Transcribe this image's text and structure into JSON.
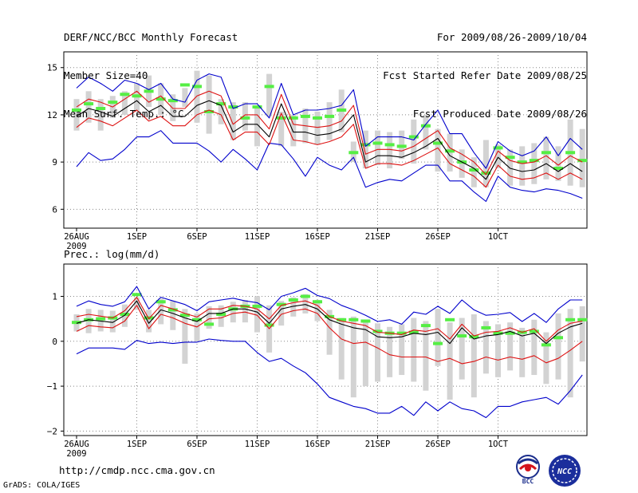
{
  "header": {
    "title": "DERF/NCC/BCC Monthly Forecast",
    "member_size": "Member Size=40",
    "variable": "Mean Surf. Temp.: °C",
    "forecast_period": "For 2009/08/26-2009/10/04",
    "started_refer": "Fcst Started Refer Date 2009/08/25",
    "produced": "Fcst Produced Date 2009/08/26"
  },
  "footer": {
    "url": "http://cmdp.ncc.cma.gov.cn",
    "credit": "GrADS: COLA/IGES",
    "logo_bcc_label": "BCC",
    "logo_ncc_label": "NCC"
  },
  "colors": {
    "mean": "#000000",
    "spread": "#dd1111",
    "envelope": "#0000cc",
    "observed": "#55ee44",
    "box": "#d3d3d3",
    "grid": "#888888"
  },
  "chart_data": [
    {
      "type": "line",
      "title": "Mean Surf. Temp.: °C",
      "x_tick_labels": [
        "26AUG",
        "1SEP",
        "6SEP",
        "11SEP",
        "16SEP",
        "21SEP",
        "26SEP",
        "1OCT"
      ],
      "x_tick_label_year": "2009",
      "y_ticks": [
        6,
        9,
        12,
        15
      ],
      "y_tick_labels": [
        "6",
        "9",
        "12",
        "15"
      ],
      "ylim": [
        4.8,
        16.0
      ],
      "grid": true,
      "series": [
        {
          "name": "max",
          "color": "envelope",
          "values": [
            13.7,
            14.4,
            14.0,
            13.5,
            14.2,
            14.0,
            13.6,
            14.0,
            13.0,
            12.8,
            14.2,
            14.6,
            14.4,
            12.4,
            12.7,
            12.7,
            11.8,
            14.0,
            12.0,
            12.3,
            12.3,
            12.4,
            12.6,
            13.6,
            10.0,
            10.6,
            10.6,
            10.6,
            10.4,
            11.4,
            12.3,
            10.8,
            10.8,
            9.6,
            8.6,
            10.3,
            9.7,
            9.4,
            9.7,
            10.6,
            9.4,
            10.5,
            9.8
          ]
        },
        {
          "name": "upper",
          "color": "spread",
          "values": [
            12.5,
            13.0,
            12.8,
            12.5,
            13.0,
            13.5,
            12.8,
            13.2,
            12.4,
            12.4,
            13.2,
            13.5,
            13.2,
            11.4,
            12.0,
            12.0,
            11.1,
            13.3,
            11.4,
            11.3,
            11.2,
            11.3,
            11.6,
            12.6,
            9.5,
            9.8,
            9.8,
            9.7,
            10.0,
            10.5,
            11.0,
            9.9,
            9.5,
            9.0,
            8.2,
            9.7,
            9.1,
            8.9,
            9.0,
            9.4,
            8.8,
            9.4,
            9.0
          ]
        },
        {
          "name": "mean",
          "color": "mean",
          "values": [
            11.9,
            12.4,
            12.2,
            11.9,
            12.4,
            12.9,
            12.2,
            12.6,
            11.9,
            11.9,
            12.6,
            12.9,
            12.6,
            10.9,
            11.4,
            11.4,
            10.6,
            12.7,
            10.9,
            10.9,
            10.7,
            10.8,
            11.1,
            12.0,
            9.0,
            9.4,
            9.4,
            9.3,
            9.6,
            10.0,
            10.5,
            9.4,
            9.0,
            8.6,
            7.9,
            9.3,
            8.6,
            8.4,
            8.5,
            8.9,
            8.4,
            8.9,
            8.4
          ]
        },
        {
          "name": "lower",
          "color": "spread",
          "values": [
            11.2,
            11.8,
            11.6,
            11.3,
            11.8,
            12.3,
            11.6,
            11.9,
            11.3,
            11.3,
            12.0,
            12.3,
            12.0,
            10.4,
            10.9,
            10.9,
            10.1,
            12.1,
            10.4,
            10.3,
            10.1,
            10.3,
            10.6,
            11.4,
            8.6,
            8.9,
            8.9,
            8.8,
            9.1,
            9.5,
            9.9,
            8.9,
            8.5,
            8.1,
            7.4,
            8.8,
            8.1,
            7.9,
            8.0,
            8.3,
            7.9,
            8.3,
            7.9
          ]
        },
        {
          "name": "min",
          "color": "envelope",
          "values": [
            8.7,
            9.6,
            9.1,
            9.2,
            9.8,
            10.6,
            10.6,
            11.0,
            10.2,
            10.2,
            10.2,
            9.7,
            9.0,
            9.8,
            9.2,
            8.5,
            10.2,
            10.1,
            9.2,
            8.1,
            9.3,
            8.8,
            8.5,
            9.3,
            7.4,
            7.7,
            7.9,
            7.8,
            8.3,
            8.8,
            8.8,
            7.8,
            7.8,
            7.1,
            6.5,
            8.1,
            7.4,
            7.2,
            7.1,
            7.3,
            7.2,
            7.0,
            6.7
          ]
        },
        {
          "name": "observed",
          "color": "observed",
          "values": [
            12.3,
            12.7,
            12.4,
            12.8,
            13.3,
            13.2,
            13.5,
            13.0,
            12.9,
            13.9,
            13.8,
            12.2,
            12.7,
            12.5,
            11.8,
            12.5,
            13.8,
            11.8,
            11.8,
            11.9,
            11.8,
            11.9,
            12.3,
            9.6,
            10.1,
            10.2,
            10.1,
            10.0,
            10.6,
            11.3,
            10.2,
            9.7,
            9.0,
            8.5,
            8.3,
            9.9,
            9.3,
            9.0,
            9.1,
            9.6,
            8.6,
            9.6,
            9.1
          ]
        },
        {
          "name": "box_high",
          "color": "box",
          "values": [
            13.0,
            13.5,
            13.0,
            13.2,
            13.5,
            14.0,
            14.5,
            14.0,
            13.3,
            13.7,
            14.8,
            14.5,
            13.0,
            12.8,
            12.8,
            12.5,
            14.6,
            12.2,
            12.0,
            12.4,
            12.2,
            12.8,
            13.6,
            10.3,
            11.0,
            11.0,
            10.9,
            11.0,
            11.7,
            12.0,
            11.1,
            10.8,
            9.8,
            9.3,
            10.4,
            10.1,
            9.8,
            10.0,
            10.2,
            10.6,
            10.0,
            11.7,
            11.1
          ]
        },
        {
          "name": "box_low",
          "color": "box",
          "values": [
            11.0,
            11.5,
            11.0,
            11.8,
            12.0,
            12.2,
            12.5,
            12.0,
            11.6,
            12.5,
            11.5,
            10.8,
            11.4,
            10.4,
            11.0,
            10.0,
            11.9,
            10.0,
            10.0,
            10.2,
            10.1,
            10.4,
            10.9,
            9.0,
            8.6,
            8.8,
            8.6,
            9.2,
            8.9,
            9.8,
            8.4,
            8.4,
            8.0,
            7.4,
            7.4,
            8.6,
            7.5,
            7.5,
            7.6,
            7.9,
            7.8,
            7.5,
            7.4
          ]
        }
      ]
    },
    {
      "type": "line",
      "title": "Prec.: log(mm/d)",
      "x_tick_labels": [
        "26AUG",
        "1SEP",
        "6SEP",
        "11SEP",
        "16SEP",
        "21SEP",
        "26SEP",
        "1OCT"
      ],
      "x_tick_label_year": "2009",
      "y_ticks": [
        -2,
        -1,
        0,
        1
      ],
      "y_tick_labels": [
        "−2",
        "−1",
        "0",
        "1"
      ],
      "ylim": [
        -2.1,
        1.72
      ],
      "grid": true,
      "series": [
        {
          "name": "max",
          "color": "envelope",
          "values": [
            0.78,
            0.9,
            0.82,
            0.78,
            0.88,
            1.22,
            0.72,
            0.98,
            0.9,
            0.82,
            0.68,
            0.88,
            0.92,
            0.96,
            0.9,
            0.86,
            0.7,
            1.0,
            1.08,
            1.18,
            1.02,
            0.95,
            0.8,
            0.7,
            0.58,
            0.44,
            0.48,
            0.38,
            0.65,
            0.6,
            0.78,
            0.62,
            0.92,
            0.7,
            0.58,
            0.6,
            0.64,
            0.44,
            0.62,
            0.42,
            0.72,
            0.92,
            0.92
          ]
        },
        {
          "name": "upper",
          "color": "spread",
          "values": [
            0.55,
            0.6,
            0.56,
            0.52,
            0.68,
            0.98,
            0.5,
            0.8,
            0.72,
            0.62,
            0.54,
            0.72,
            0.72,
            0.8,
            0.78,
            0.72,
            0.5,
            0.8,
            0.86,
            0.9,
            0.8,
            0.55,
            0.45,
            0.4,
            0.35,
            0.2,
            0.18,
            0.15,
            0.25,
            0.22,
            0.28,
            0.05,
            0.38,
            0.12,
            0.2,
            0.22,
            0.3,
            0.2,
            0.28,
            0.0,
            0.25,
            0.4,
            0.45
          ]
        },
        {
          "name": "mean",
          "color": "mean",
          "values": [
            0.4,
            0.48,
            0.45,
            0.42,
            0.58,
            0.9,
            0.4,
            0.7,
            0.62,
            0.52,
            0.44,
            0.62,
            0.62,
            0.72,
            0.72,
            0.65,
            0.4,
            0.72,
            0.78,
            0.82,
            0.72,
            0.48,
            0.38,
            0.3,
            0.26,
            0.1,
            0.08,
            0.1,
            0.18,
            0.15,
            0.2,
            -0.05,
            0.3,
            0.05,
            0.12,
            0.15,
            0.22,
            0.12,
            0.18,
            -0.05,
            0.18,
            0.32,
            0.4
          ]
        },
        {
          "name": "lower",
          "color": "spread",
          "values": [
            0.22,
            0.35,
            0.32,
            0.3,
            0.45,
            0.8,
            0.28,
            0.6,
            0.52,
            0.4,
            0.32,
            0.5,
            0.52,
            0.62,
            0.65,
            0.58,
            0.28,
            0.6,
            0.68,
            0.72,
            0.62,
            0.3,
            0.05,
            -0.05,
            -0.02,
            -0.15,
            -0.3,
            -0.35,
            -0.35,
            -0.35,
            -0.45,
            -0.38,
            -0.5,
            -0.45,
            -0.35,
            -0.42,
            -0.35,
            -0.4,
            -0.32,
            -0.48,
            -0.38,
            -0.2,
            0.0
          ]
        },
        {
          "name": "min",
          "color": "envelope",
          "values": [
            -0.28,
            -0.15,
            -0.15,
            -0.15,
            -0.18,
            0.02,
            -0.05,
            -0.02,
            -0.05,
            -0.02,
            -0.02,
            0.05,
            0.02,
            0.0,
            0.0,
            -0.25,
            -0.45,
            -0.38,
            -0.55,
            -0.7,
            -0.95,
            -1.25,
            -1.35,
            -1.45,
            -1.5,
            -1.6,
            -1.6,
            -1.45,
            -1.65,
            -1.35,
            -1.55,
            -1.35,
            -1.5,
            -1.55,
            -1.7,
            -1.45,
            -1.45,
            -1.35,
            -1.3,
            -1.25,
            -1.4,
            -1.1,
            -0.75
          ]
        },
        {
          "name": "observed",
          "color": "observed",
          "values": [
            0.42,
            0.48,
            0.5,
            0.52,
            0.6,
            1.04,
            0.52,
            0.88,
            0.7,
            0.58,
            0.48,
            0.38,
            0.6,
            0.72,
            0.78,
            0.78,
            0.36,
            0.82,
            0.92,
            1.0,
            0.88,
            0.55,
            0.48,
            0.48,
            0.45,
            0.22,
            0.18,
            0.18,
            0.2,
            0.35,
            -0.05,
            0.48,
            0.12,
            0.1,
            0.3,
            0.18,
            0.18,
            0.2,
            0.22,
            -0.08,
            0.08,
            0.48,
            0.48
          ]
        },
        {
          "name": "box_high",
          "color": "box",
          "values": [
            0.6,
            0.72,
            0.7,
            0.68,
            0.82,
            0.98,
            0.7,
            0.95,
            0.9,
            0.72,
            0.62,
            0.78,
            0.8,
            0.88,
            0.92,
            1.0,
            0.8,
            0.9,
            0.98,
            1.05,
            0.92,
            0.7,
            0.52,
            0.55,
            0.48,
            0.4,
            0.32,
            0.38,
            0.52,
            0.45,
            0.72,
            0.42,
            0.52,
            0.6,
            0.45,
            0.38,
            0.42,
            0.3,
            0.48,
            0.2,
            0.62,
            0.72,
            0.78
          ]
        },
        {
          "name": "box_low",
          "color": "box",
          "values": [
            0.22,
            0.18,
            0.22,
            0.2,
            0.32,
            0.7,
            0.2,
            0.38,
            0.25,
            -0.5,
            0.0,
            0.28,
            0.32,
            0.42,
            0.42,
            0.2,
            -0.25,
            0.35,
            0.55,
            0.62,
            0.45,
            -0.3,
            -0.85,
            -1.25,
            -1.0,
            -0.9,
            -0.8,
            -0.75,
            -0.9,
            -1.1,
            -0.55,
            -1.3,
            -0.85,
            -1.25,
            -0.72,
            -0.8,
            -0.65,
            -0.8,
            -0.75,
            -0.95,
            -0.85,
            -1.25,
            -0.45
          ]
        }
      ]
    }
  ]
}
